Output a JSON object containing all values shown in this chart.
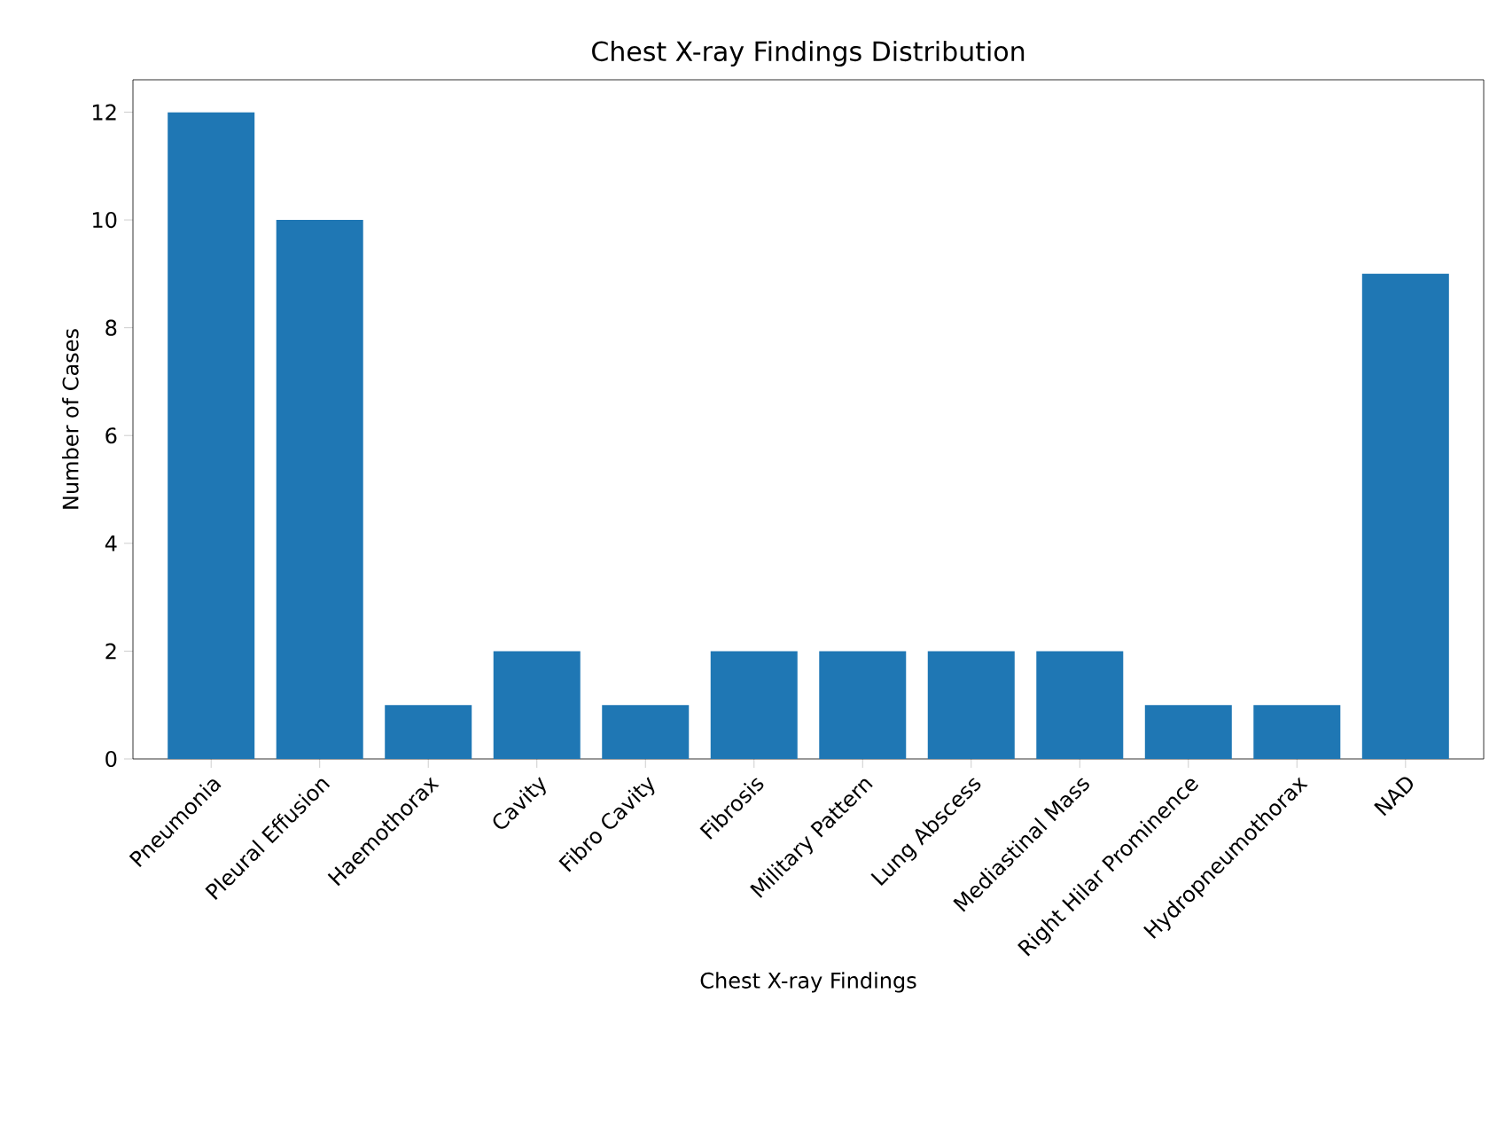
{
  "chart_data": {
    "type": "bar",
    "title": "Chest X-ray Findings Distribution",
    "xlabel": "Chest X-ray Findings",
    "ylabel": "Number of Cases",
    "categories": [
      "Pneumonia",
      "Pleural Effusion",
      "Haemothorax",
      "Cavity",
      "Fibro Cavity",
      "Fibrosis",
      "Military Pattern",
      "Lung Abscess",
      "Mediastinal Mass",
      "Right Hilar Prominence",
      "Hydropneumothorax",
      "NAD"
    ],
    "values": [
      12,
      10,
      1,
      2,
      1,
      2,
      2,
      2,
      2,
      1,
      1,
      9
    ],
    "color": "#1f77b4",
    "ylim": [
      0,
      12.6
    ],
    "yticks": [
      0,
      2,
      4,
      6,
      8,
      10,
      12
    ],
    "grid": false
  }
}
